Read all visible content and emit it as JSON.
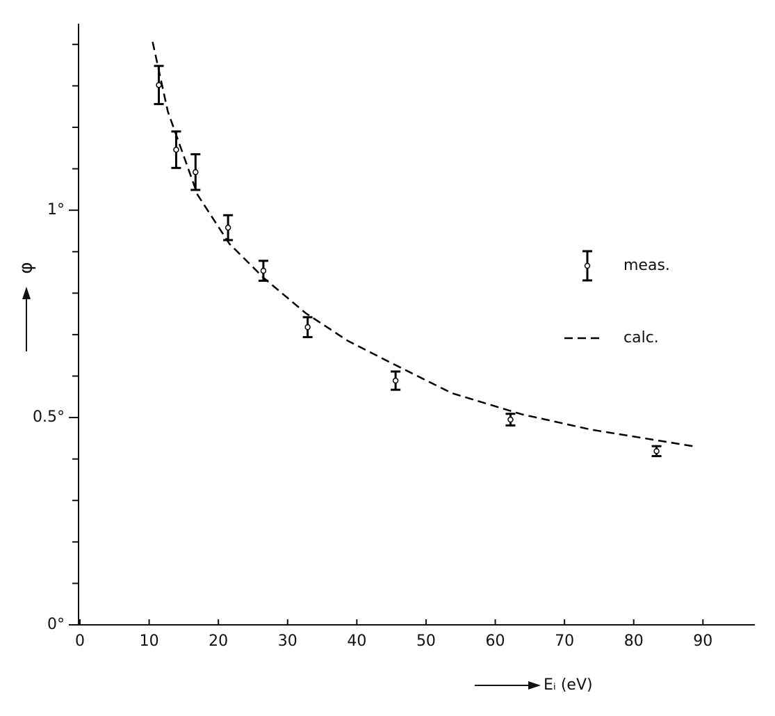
{
  "chart_data": {
    "type": "scatter",
    "xlabel": "Eᵢ (eV)",
    "ylabel": "φ",
    "xlim": [
      0,
      97.5
    ],
    "ylim": [
      0,
      1.45
    ],
    "xticks": [
      0,
      10,
      20,
      30,
      40,
      50,
      60,
      70,
      80,
      90
    ],
    "yticks": [
      {
        "value": 0,
        "label": "0°"
      },
      {
        "value": 0.5,
        "label": "0.5°"
      },
      {
        "value": 1,
        "label": "1°"
      }
    ],
    "yminorticks": [
      0.1,
      0.2,
      0.3,
      0.4,
      0.6,
      0.7,
      0.8,
      0.9,
      1.1,
      1.2,
      1.3,
      1.4
    ],
    "series": [
      {
        "name": "meas.",
        "color": "#000000",
        "x": [
          11.4,
          13.9,
          16.7,
          21.4,
          26.5,
          32.9,
          45.6,
          62.2,
          83.3
        ],
        "values": [
          1.302,
          1.146,
          1.092,
          0.958,
          0.854,
          0.718,
          0.589,
          0.495,
          0.419
        ],
        "errors": [
          0.046,
          0.044,
          0.043,
          0.03,
          0.024,
          0.024,
          0.022,
          0.014,
          0.012
        ]
      },
      {
        "name": "calc.",
        "color": "#000000",
        "dashed": true,
        "x": [
          10.5,
          12.7,
          17.0,
          21.6,
          26.6,
          32.6,
          38.7,
          44.7,
          53.7,
          63.8,
          73.8,
          88.9
        ],
        "values": [
          1.406,
          1.238,
          1.037,
          0.919,
          0.836,
          0.752,
          0.685,
          0.634,
          0.559,
          0.508,
          0.471,
          0.43
        ]
      }
    ]
  }
}
